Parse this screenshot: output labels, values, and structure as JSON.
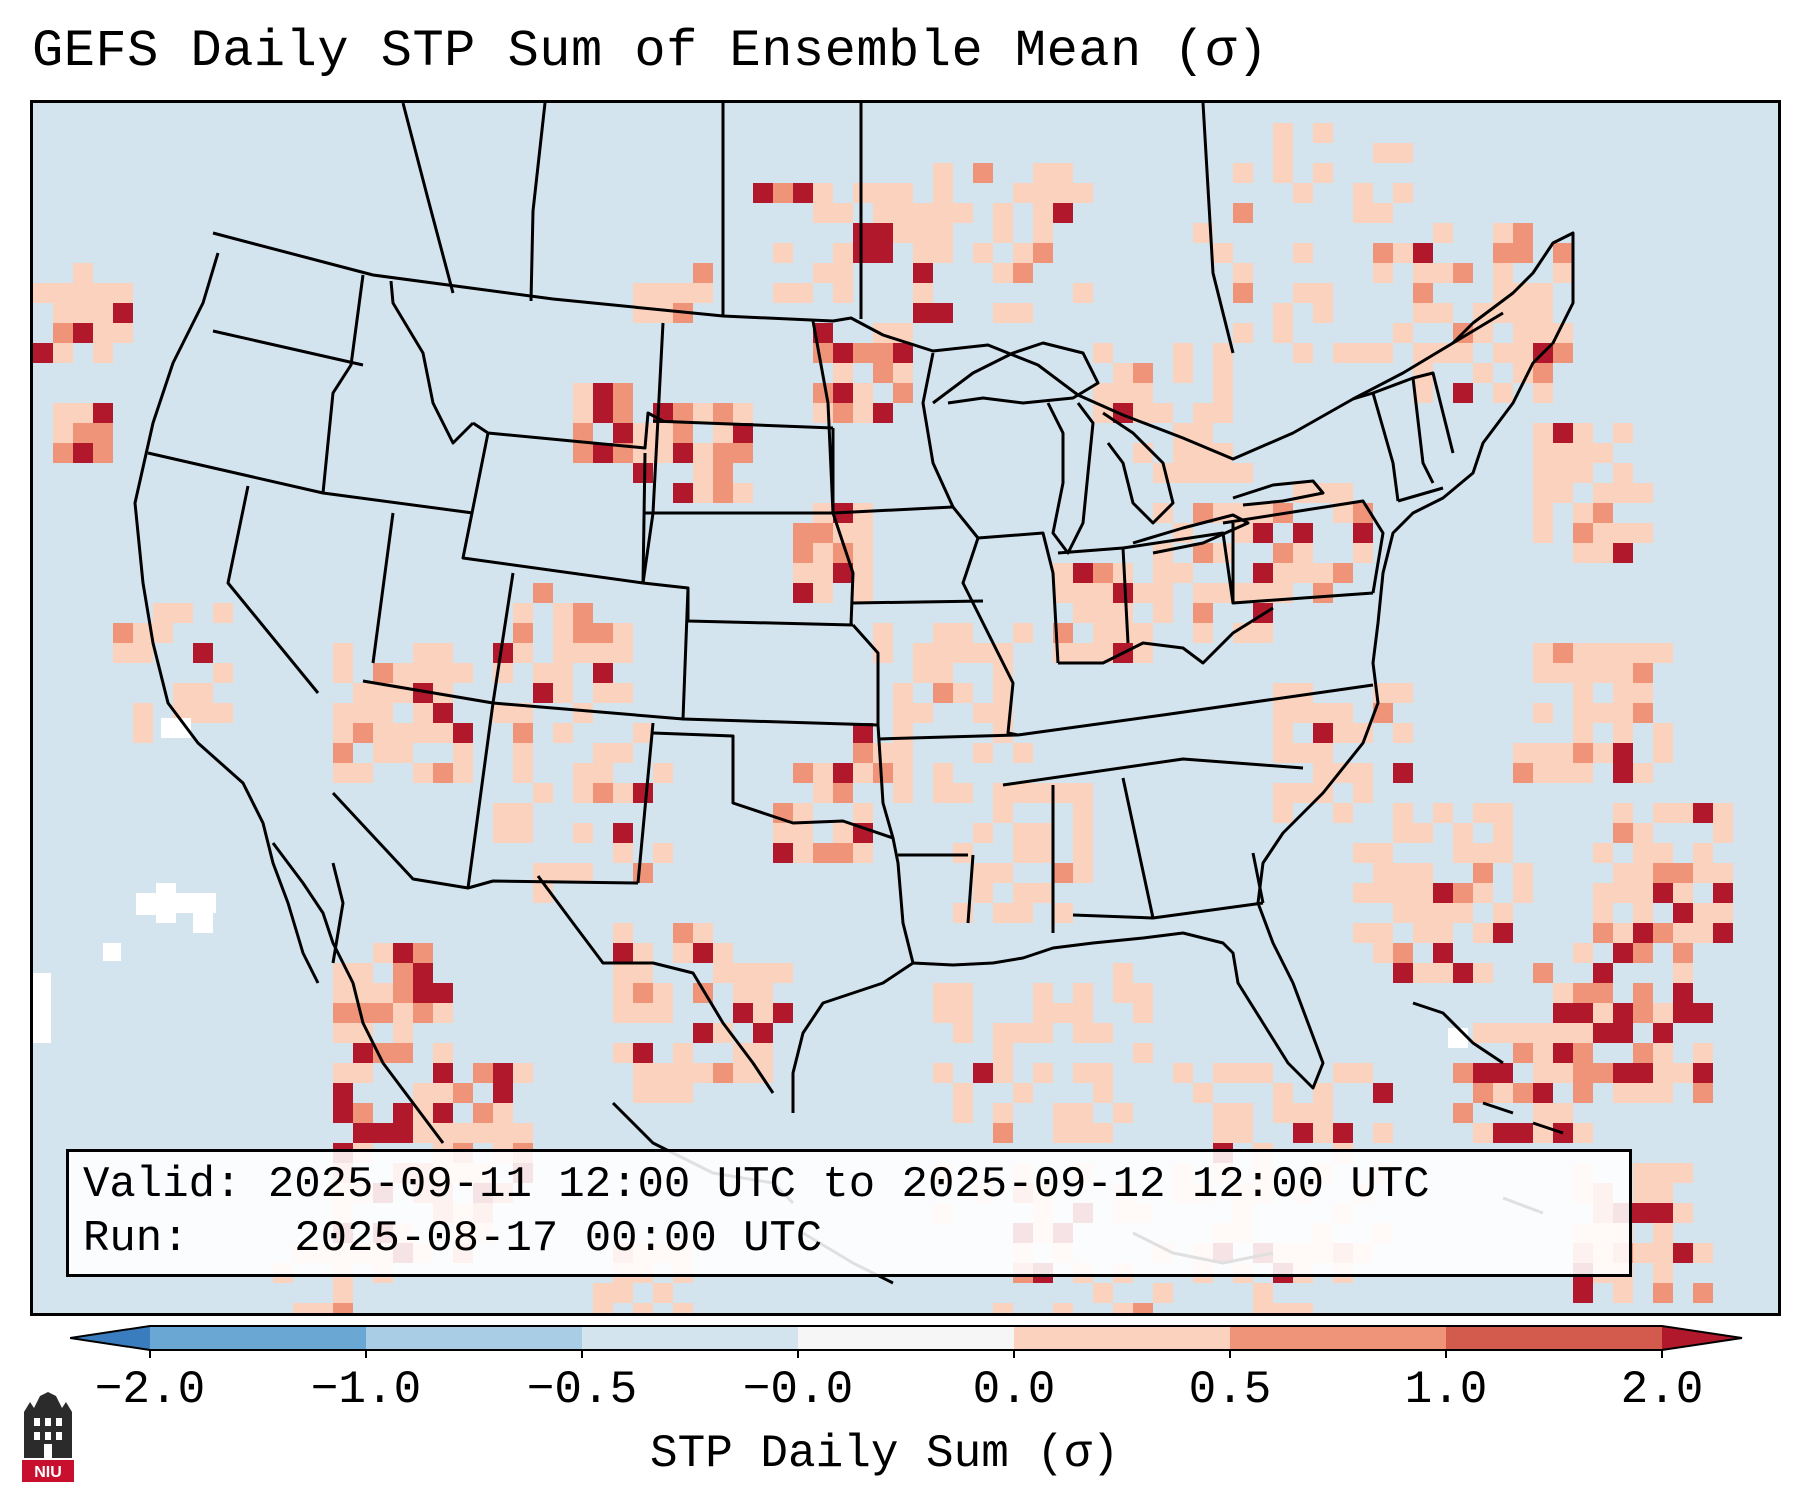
{
  "title": "GEFS Daily STP Sum of Ensemble Mean (σ)",
  "info": {
    "valid_label": "Valid:",
    "valid_value": "2025-09-11 12:00 UTC to 2025-09-12 12:00 UTC",
    "run_label": "Run:",
    "run_value": "2025-08-17 00:00 UTC"
  },
  "colorbar": {
    "label": "STP Daily Sum (σ)",
    "ticks": [
      "−2.0",
      "−1.0",
      "−0.5",
      "−0.0",
      "0.0",
      "0.5",
      "1.0",
      "2.0"
    ],
    "colors": [
      "#3a7dbf",
      "#6aa8d3",
      "#a8cde4",
      "#d3e4ef",
      "#f6f6f6",
      "#fbd2bd",
      "#ef9478",
      "#d35b4d",
      "#b2182b"
    ]
  },
  "map_colors": {
    "background": "#d3e4ef",
    "light": "#fbd2bd",
    "medium": "#ef9478",
    "dark": "#b2182b",
    "border": "#000000"
  },
  "logo": {
    "text": "NIU"
  }
}
